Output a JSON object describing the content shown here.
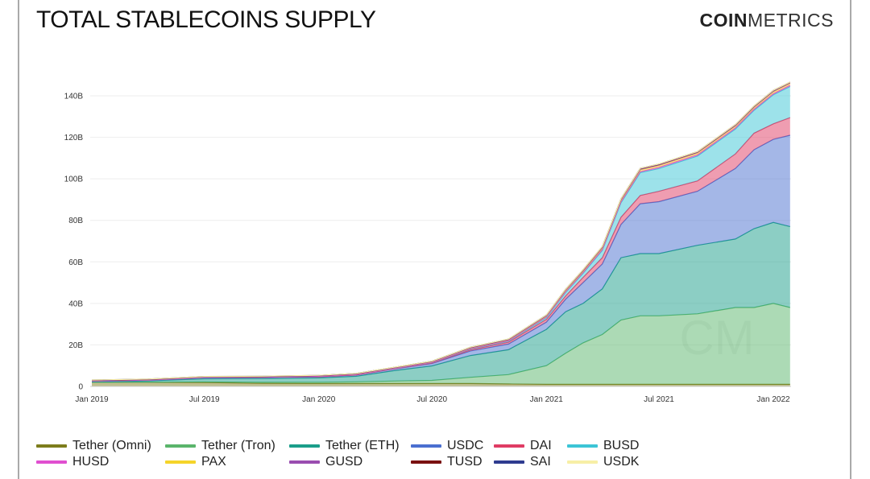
{
  "title": "TOTAL STABLECOINS SUPPLY",
  "logo": {
    "bold": "COIN",
    "light": "METRICS"
  },
  "watermark": "CM",
  "chart_data": {
    "type": "area",
    "stacked": true,
    "title": "TOTAL STABLECOINS SUPPLY",
    "xlabel": "",
    "ylabel": "",
    "ylim": [
      0,
      150
    ],
    "y_ticks": [
      0,
      20,
      40,
      60,
      80,
      100,
      120,
      140
    ],
    "y_tick_labels": [
      "0",
      "20B",
      "40B",
      "60B",
      "80B",
      "100B",
      "120B",
      "140B"
    ],
    "x_ticks": [
      "2019-01-01",
      "2019-07-01",
      "2020-01-01",
      "2020-07-01",
      "2021-01-01",
      "2021-07-01",
      "2022-01-01"
    ],
    "x_tick_labels": [
      "Jan 2019",
      "Jul 2019",
      "Jan 2020",
      "Jul 2020",
      "Jan 2021",
      "Jul 2021",
      "Jan 2022"
    ],
    "grid": "horizontal",
    "legend": "bottom",
    "unit": "billions USD",
    "x": [
      "2019-01-01",
      "2019-04-01",
      "2019-07-01",
      "2019-10-01",
      "2020-01-01",
      "2020-03-01",
      "2020-05-01",
      "2020-07-01",
      "2020-09-01",
      "2020-11-01",
      "2021-01-01",
      "2021-02-01",
      "2021-03-01",
      "2021-04-01",
      "2021-05-01",
      "2021-06-01",
      "2021-07-01",
      "2021-09-01",
      "2021-11-01",
      "2021-12-01",
      "2022-01-01",
      "2022-01-28"
    ],
    "series": [
      {
        "name": "Tether (Omni)",
        "color": "#7d7d1c",
        "values": [
          2.0,
          2.0,
          1.9,
          1.5,
          1.4,
          1.4,
          1.4,
          1.4,
          1.4,
          1.2,
          1.0,
          1.0,
          1.0,
          1.0,
          1.0,
          1.0,
          1.0,
          1.0,
          1.0,
          1.0,
          1.0,
          1.0
        ]
      },
      {
        "name": "Tether (Tron)",
        "color": "#5ab56b",
        "values": [
          0,
          0.05,
          0.3,
          0.5,
          0.6,
          0.8,
          1.2,
          1.5,
          3.0,
          4.5,
          9.0,
          15,
          20,
          24,
          31,
          33,
          33,
          34,
          37,
          37,
          39,
          37
        ]
      },
      {
        "name": "Tether (ETH)",
        "color": "#1a9e8a",
        "values": [
          0.2,
          0.6,
          1.5,
          1.8,
          2.1,
          2.7,
          5.0,
          7.0,
          10.5,
          12.0,
          17.5,
          20,
          19,
          22,
          30,
          30,
          30,
          33,
          33,
          38,
          39,
          39
        ]
      },
      {
        "name": "USDC",
        "color": "#4a6fd0",
        "values": [
          0.3,
          0.3,
          0.5,
          0.5,
          0.5,
          0.6,
          0.8,
          1.1,
          2.2,
          2.7,
          3.5,
          6,
          10,
          12,
          16,
          24,
          25,
          26,
          34,
          38,
          40,
          44
        ]
      },
      {
        "name": "DAI",
        "color": "#e03c64",
        "values": [
          0.1,
          0.1,
          0.1,
          0.1,
          0.1,
          0.1,
          0.1,
          0.3,
          0.6,
          0.9,
          1.3,
          1.6,
          2.5,
          3.0,
          3.5,
          4,
          5,
          5,
          7,
          8,
          7.5,
          8.5
        ]
      },
      {
        "name": "BUSD",
        "color": "#3cc5d6",
        "values": [
          0,
          0,
          0,
          0,
          0.2,
          0.2,
          0.2,
          0.2,
          0.3,
          0.5,
          0.9,
          1.7,
          2.0,
          3.5,
          7,
          11,
          11,
          12,
          12,
          11,
          14,
          15
        ]
      },
      {
        "name": "HUSD",
        "color": "#e04fd0",
        "values": [
          0,
          0,
          0,
          0,
          0,
          0,
          0.05,
          0.1,
          0.2,
          0.2,
          0.3,
          0.4,
          0.4,
          0.5,
          0.5,
          0.5,
          0.6,
          0.6,
          0.6,
          0.6,
          0.6,
          0.6
        ]
      },
      {
        "name": "PAX",
        "color": "#f5d42a",
        "values": [
          0.2,
          0.2,
          0.2,
          0.2,
          0.2,
          0.25,
          0.25,
          0.3,
          0.3,
          0.4,
          0.5,
          0.6,
          0.7,
          0.8,
          0.8,
          0.9,
          0.9,
          0.9,
          0.9,
          0.9,
          0.9,
          0.9
        ]
      },
      {
        "name": "GUSD",
        "color": "#9a4db0",
        "values": [
          0.01,
          0.01,
          0.02,
          0.02,
          0.02,
          0.02,
          0.03,
          0.05,
          0.1,
          0.1,
          0.1,
          0.2,
          0.2,
          0.2,
          0.2,
          0.2,
          0.2,
          0.2,
          0.2,
          0.2,
          0.2,
          0.2
        ]
      },
      {
        "name": "TUSD",
        "color": "#7a1010",
        "values": [
          0.2,
          0.2,
          0.2,
          0.2,
          0.15,
          0.15,
          0.15,
          0.2,
          0.3,
          0.3,
          0.3,
          0.3,
          0.4,
          0.4,
          0.4,
          0.4,
          0.4,
          0.4,
          0.4,
          0.4,
          0.4,
          0.4
        ]
      },
      {
        "name": "SAI",
        "color": "#2e3b8f",
        "values": [
          0.08,
          0.08,
          0.08,
          0.08,
          0.05,
          0.03,
          0.02,
          0.01,
          0.01,
          0.01,
          0.01,
          0.01,
          0.01,
          0.01,
          0.01,
          0.01,
          0.01,
          0.01,
          0.01,
          0.01,
          0.01,
          0.01
        ]
      },
      {
        "name": "USDK",
        "color": "#f7efa6",
        "values": [
          0,
          0,
          0.02,
          0.03,
          0.03,
          0.03,
          0.03,
          0.03,
          0.03,
          0.03,
          0.03,
          0.03,
          0.03,
          0.03,
          0.03,
          0.03,
          0.03,
          0.03,
          0.03,
          0.03,
          0.03,
          0.03
        ]
      }
    ]
  }
}
